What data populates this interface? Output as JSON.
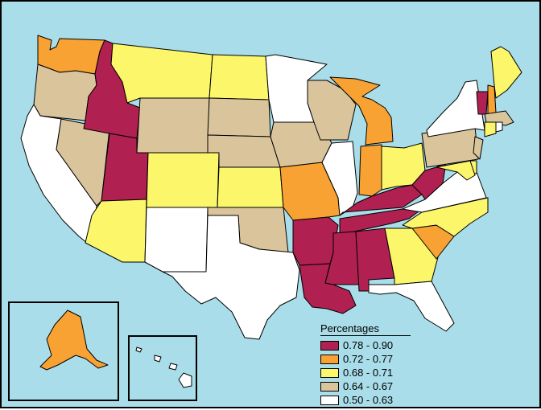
{
  "legend": {
    "title": "Percentages",
    "bins": [
      {
        "label": "0.78 - 0.90",
        "color": "#b02050"
      },
      {
        "label": "0.72 - 0.77",
        "color": "#f7a233"
      },
      {
        "label": "0.68 - 0.71",
        "color": "#fbf66a"
      },
      {
        "label": "0.64 - 0.67",
        "color": "#d9c49c"
      },
      {
        "label": "0.50 - 0.63",
        "color": "#ffffff"
      }
    ]
  },
  "colors": {
    "water": "#a9dde9",
    "border": "#000000"
  },
  "chart_data": {
    "type": "choropleth",
    "state_bins": {
      "Washington": "0.72 - 0.77",
      "Oregon": "0.64 - 0.67",
      "California": "0.50 - 0.63",
      "Idaho": "0.78 - 0.90",
      "Nevada": "0.64 - 0.67",
      "Utah": "0.78 - 0.90",
      "Arizona": "0.68 - 0.71",
      "Montana": "0.68 - 0.71",
      "Wyoming": "0.64 - 0.67",
      "Colorado": "0.68 - 0.71",
      "New Mexico": "0.50 - 0.63",
      "North Dakota": "0.68 - 0.71",
      "South Dakota": "0.64 - 0.67",
      "Nebraska": "0.64 - 0.67",
      "Kansas": "0.68 - 0.71",
      "Oklahoma": "0.64 - 0.67",
      "Texas": "0.50 - 0.63",
      "Minnesota": "0.50 - 0.63",
      "Iowa": "0.64 - 0.67",
      "Missouri": "0.72 - 0.77",
      "Arkansas": "0.78 - 0.90",
      "Louisiana": "0.78 - 0.90",
      "Wisconsin": "0.64 - 0.67",
      "Illinois": "0.50 - 0.63",
      "Michigan": "0.72 - 0.77",
      "Indiana": "0.72 - 0.77",
      "Ohio": "0.68 - 0.71",
      "Kentucky": "0.78 - 0.90",
      "Tennessee": "0.78 - 0.90",
      "Mississippi": "0.78 - 0.90",
      "Alabama": "0.78 - 0.90",
      "Georgia": "0.68 - 0.71",
      "Florida": "0.50 - 0.63",
      "South Carolina": "0.72 - 0.77",
      "North Carolina": "0.68 - 0.71",
      "Virginia": "0.50 - 0.63",
      "West Virginia": "0.78 - 0.90",
      "Pennsylvania": "0.64 - 0.67",
      "New York": "0.50 - 0.63",
      "Vermont": "0.78 - 0.90",
      "New Hampshire": "0.72 - 0.77",
      "Maine": "0.68 - 0.71",
      "Massachusetts": "0.64 - 0.67",
      "Connecticut": "0.68 - 0.71",
      "Rhode Island": "0.50 - 0.63",
      "New Jersey": "0.64 - 0.67",
      "Delaware": "0.68 - 0.71",
      "Maryland": "0.68 - 0.71",
      "Alaska": "0.72 - 0.77",
      "Hawaii": "0.50 - 0.63"
    }
  }
}
